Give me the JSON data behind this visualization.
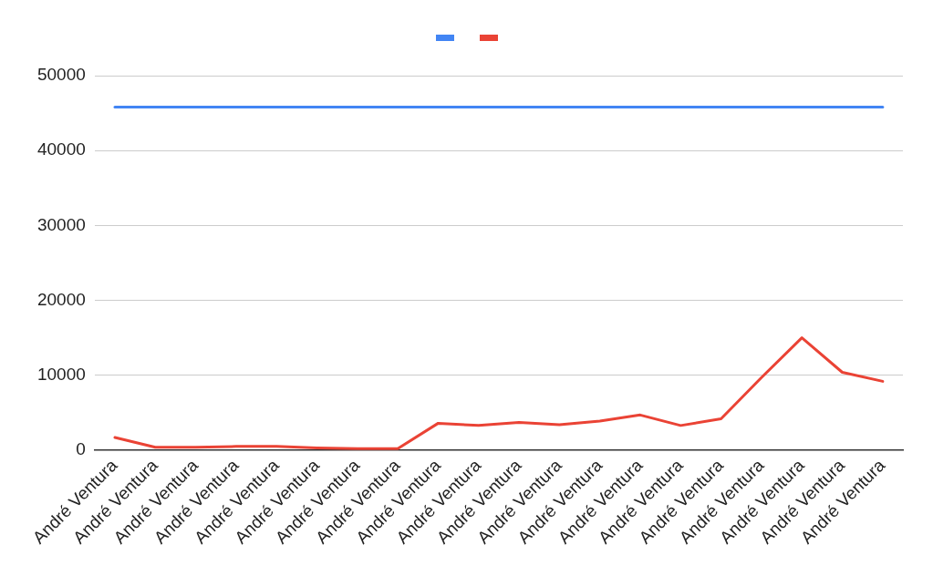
{
  "chart_data": {
    "type": "line",
    "categories": [
      "André Ventura",
      "André Ventura",
      "André Ventura",
      "André Ventura",
      "André Ventura",
      "André Ventura",
      "André Ventura",
      "André Ventura",
      "André Ventura",
      "André Ventura",
      "André Ventura",
      "André Ventura",
      "André Ventura",
      "André Ventura",
      "André Ventura",
      "André Ventura",
      "André Ventura",
      "André Ventura",
      "André Ventura",
      "André Ventura"
    ],
    "series": [
      {
        "color": "#4285f4",
        "values": [
          45800,
          45800,
          45800,
          45800,
          45800,
          45800,
          45800,
          45800,
          45800,
          45800,
          45800,
          45800,
          45800,
          45800,
          45800,
          45800,
          45800,
          45800,
          45800,
          45800
        ]
      },
      {
        "color": "#ea4335",
        "values": [
          1700,
          400,
          400,
          500,
          500,
          300,
          200,
          200,
          3600,
          3300,
          3700,
          3400,
          3900,
          4700,
          3300,
          4200,
          9700,
          15000,
          10400,
          9200
        ]
      }
    ],
    "ylim": [
      0,
      50000
    ],
    "yticks": [
      0,
      10000,
      20000,
      30000,
      40000,
      50000
    ],
    "grid": "y"
  }
}
